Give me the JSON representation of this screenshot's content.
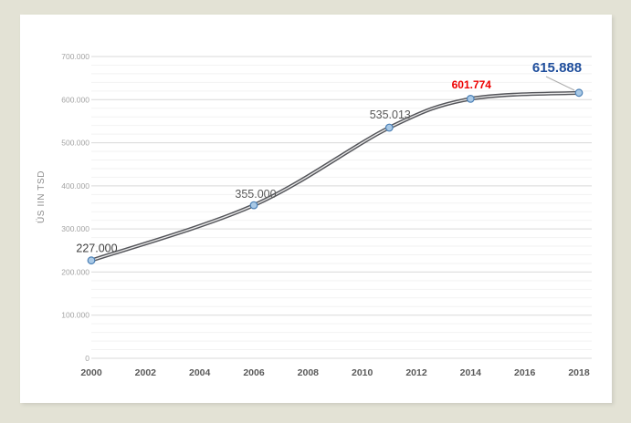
{
  "colors": {
    "page_bg": "#e3e2d5",
    "card_bg": "#ffffff",
    "line": "#54555a",
    "line_core": "#ebebeb",
    "marker_fill": "#a9c9e6",
    "marker_stroke": "#4a7fb5",
    "major_grid": "#d9d9d9",
    "minor_grid": "#f2f2f2",
    "y_tick_text": "#a3a3a3",
    "x_tick_text": "#595959",
    "axis_title": "#8c8c8c",
    "leader": "#adadad",
    "label_red": "#ee0000",
    "label_blue": "#1f4e9c"
  },
  "chart_data": {
    "type": "line",
    "title": "",
    "xlabel": "",
    "ylabel": "ÜS IIN TSD",
    "x": [
      2000,
      2006,
      2011,
      2014,
      2018
    ],
    "values": [
      227000,
      355000,
      535013,
      601774,
      615888
    ],
    "series": [
      {
        "name": "ÜS IN TSD",
        "values": [
          227000,
          355000,
          535013,
          601774,
          615888
        ]
      }
    ],
    "point_labels": [
      {
        "text": "227.000",
        "color": "#3f3f3f",
        "bold": false,
        "size": 12.5
      },
      {
        "text": "355.000",
        "color": "#595959",
        "bold": false,
        "size": 12.5
      },
      {
        "text": "535.013",
        "color": "#595959",
        "bold": false,
        "size": 12.5
      },
      {
        "text": "601.774",
        "color": "#ee0000",
        "bold": true,
        "size": 12
      },
      {
        "text": "615.888",
        "color": "#1f4e9c",
        "bold": true,
        "size": 15
      }
    ],
    "x_tick_values": [
      2000,
      2002,
      2004,
      2006,
      2008,
      2010,
      2012,
      2014,
      2016,
      2018
    ],
    "x_tick_labels": [
      "2000",
      "2002",
      "2004",
      "2006",
      "2008",
      "2010",
      "2012",
      "2014",
      "2016",
      "2018"
    ],
    "y_tick_values": [
      0,
      100000,
      200000,
      300000,
      400000,
      500000,
      600000,
      700000
    ],
    "y_tick_labels": [
      "0",
      "100.000",
      "200.000",
      "300.000",
      "400.000",
      "500.000",
      "600.000",
      "700.000"
    ],
    "xlim": [
      2000,
      2018
    ],
    "ylim": [
      0,
      700000
    ],
    "minor_grid_step": 20000,
    "grid": true,
    "legend": "none",
    "line_smooth": true,
    "last_point_has_leader_line": true
  }
}
